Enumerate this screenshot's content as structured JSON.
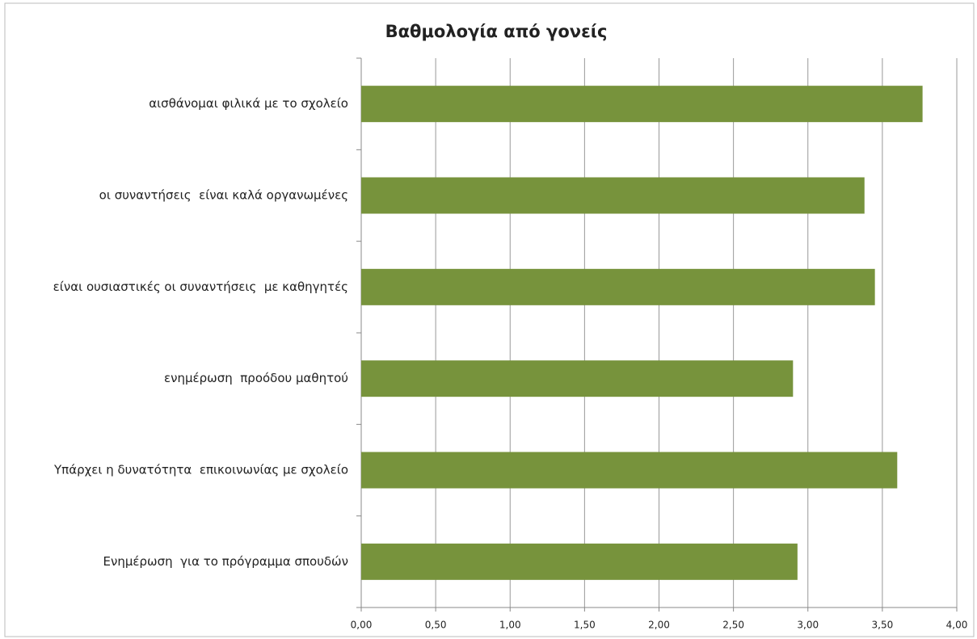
{
  "chart_data": {
    "type": "bar",
    "orientation": "horizontal",
    "title": "Βαθμολογία από γονείς",
    "categories": [
      "αισθάνομαι φιλικά με το σχολείο",
      "οι συναντήσεις  είναι καλά οργανωμένες",
      "είναι ουσιαστικές οι συναντήσεις  με καθηγητές",
      "ενημέρωση  προόδου μαθητού",
      "Υπάρχει η δυνατότητα  επικοινωνίας με σχολείο",
      "Ενημέρωση  για το πρόγραμμα σπουδών"
    ],
    "values": [
      3.77,
      3.38,
      3.45,
      2.9,
      3.6,
      2.93
    ],
    "color": "#77933c",
    "xlim": [
      0,
      4
    ],
    "xticks": [
      {
        "value": 0,
        "label": "0,00"
      },
      {
        "value": 0.5,
        "label": "0,50"
      },
      {
        "value": 1,
        "label": "1,00"
      },
      {
        "value": 1.5,
        "label": "1,50"
      },
      {
        "value": 2,
        "label": "2,00"
      },
      {
        "value": 2.5,
        "label": "2,50"
      },
      {
        "value": 3,
        "label": "3,00"
      },
      {
        "value": 3.5,
        "label": "3,50"
      },
      {
        "value": 4,
        "label": "4,00"
      }
    ],
    "grid": true
  }
}
